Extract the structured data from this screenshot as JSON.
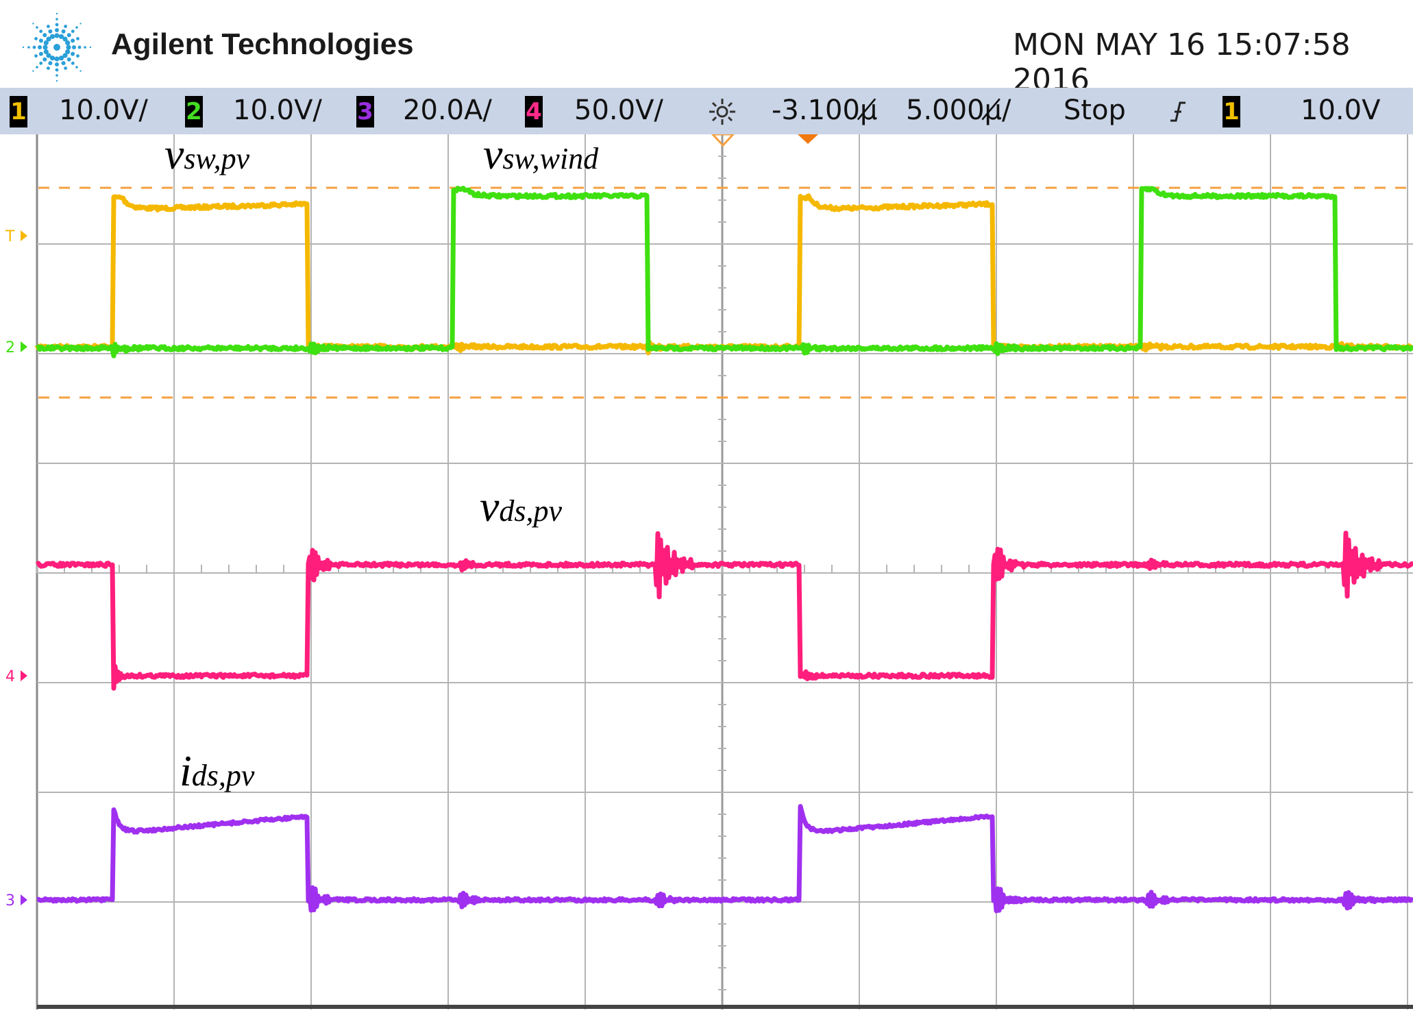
{
  "header": {
    "brand": "Agilent Technologies",
    "datetime": "MON MAY 16 15:07:58 2016",
    "logo_icon": "agilent-spark-icon"
  },
  "status_bar": {
    "ch1": {
      "number": "1",
      "scale": "10.0V/",
      "color": "#f0c000"
    },
    "ch2": {
      "number": "2",
      "scale": "10.0V/",
      "color": "#44dd22"
    },
    "ch3": {
      "number": "3",
      "scale": "20.0A/",
      "color": "#9a30e0"
    },
    "ch4": {
      "number": "4",
      "scale": "50.0V/",
      "color": "#ff2a8a"
    },
    "trigger_icon": "trigger-sun-icon",
    "delay": "-3.100µ̸",
    "timebase": "5.000µ̸/",
    "run_state": "Stop",
    "edge_icon": "rising-edge-icon",
    "trigger_source": "1",
    "trigger_level": "10.0V"
  },
  "waveform_labels": {
    "sw_pv": {
      "main": "v",
      "sub": "sw,pv"
    },
    "sw_wind": {
      "main": "v",
      "sub": "sw,wind"
    },
    "ds_pv_voltage": {
      "main": "v",
      "sub": "ds,pv"
    },
    "ds_pv_current": {
      "main": "i",
      "sub": "ds,pv"
    }
  },
  "colors": {
    "ch1": "#f5b800",
    "ch2": "#3fe010",
    "ch3": "#a030ef",
    "ch4": "#ff1e7c",
    "grid": "#b4b4b4",
    "trigger_line": "#f5a040"
  }
}
